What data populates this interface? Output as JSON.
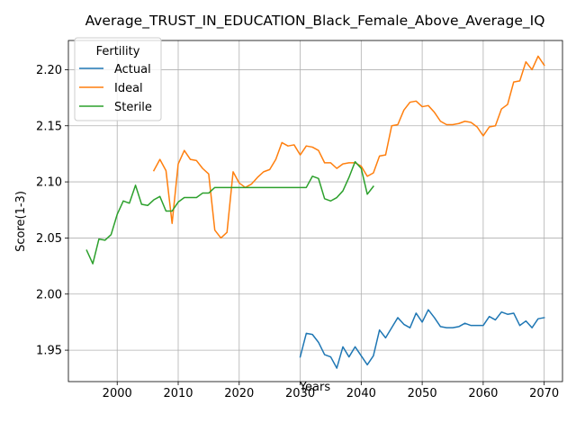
{
  "chart_data": {
    "type": "line",
    "title": "Average_TRUST_IN_EDUCATION_Black_Female_Above_Average_IQ",
    "xlabel": "Years",
    "ylabel": "Score(1-3)",
    "xlim": [
      1992,
      2073
    ],
    "ylim": [
      1.922,
      2.226
    ],
    "xticks": [
      2000,
      2010,
      2020,
      2030,
      2040,
      2050,
      2060,
      2070
    ],
    "yticks": [
      1.95,
      2.0,
      2.05,
      2.1,
      2.15,
      2.2
    ],
    "grid": true,
    "legend": {
      "title": "Fertility",
      "placement": "top-left"
    },
    "series": [
      {
        "name": "Actual",
        "color": "#1f77b4",
        "x": [
          2030,
          2031,
          2032,
          2033,
          2034,
          2035,
          2036,
          2037,
          2038,
          2039,
          2040,
          2041,
          2042,
          2043,
          2044,
          2045,
          2046,
          2047,
          2048,
          2049,
          2050,
          2051,
          2052,
          2053,
          2054,
          2055,
          2056,
          2057,
          2058,
          2059,
          2060,
          2061,
          2062,
          2063,
          2064,
          2065,
          2066,
          2067,
          2068,
          2069,
          2070
        ],
        "y": [
          1.944,
          1.965,
          1.964,
          1.957,
          1.946,
          1.944,
          1.934,
          1.953,
          1.944,
          1.953,
          1.945,
          1.937,
          1.945,
          1.968,
          1.961,
          1.97,
          1.979,
          1.973,
          1.97,
          1.983,
          1.975,
          1.986,
          1.979,
          1.971,
          1.97,
          1.97,
          1.971,
          1.974,
          1.972,
          1.972,
          1.972,
          1.98,
          1.977,
          1.984,
          1.982,
          1.983,
          1.972,
          1.976,
          1.97,
          1.978,
          1.979
        ]
      },
      {
        "name": "Ideal",
        "color": "#ff7f0e",
        "x": [
          2006,
          2007,
          2008,
          2009,
          2010,
          2011,
          2012,
          2013,
          2014,
          2015,
          2016,
          2017,
          2018,
          2019,
          2020,
          2021,
          2022,
          2023,
          2024,
          2025,
          2026,
          2027,
          2028,
          2029,
          2030,
          2031,
          2032,
          2033,
          2034,
          2035,
          2036,
          2037,
          2038,
          2039,
          2040,
          2041,
          2042,
          2043,
          2044,
          2045,
          2046,
          2047,
          2048,
          2049,
          2050,
          2051,
          2052,
          2053,
          2054,
          2055,
          2056,
          2057,
          2058,
          2059,
          2060,
          2061,
          2062,
          2063,
          2064,
          2065,
          2066,
          2067,
          2068,
          2069,
          2070
        ],
        "y": [
          2.11,
          2.12,
          2.11,
          2.063,
          2.116,
          2.128,
          2.12,
          2.119,
          2.112,
          2.107,
          2.057,
          2.05,
          2.055,
          2.109,
          2.099,
          2.095,
          2.098,
          2.104,
          2.109,
          2.111,
          2.12,
          2.135,
          2.132,
          2.133,
          2.124,
          2.132,
          2.131,
          2.128,
          2.117,
          2.117,
          2.112,
          2.116,
          2.117,
          2.117,
          2.114,
          2.105,
          2.108,
          2.123,
          2.124,
          2.15,
          2.151,
          2.164,
          2.171,
          2.172,
          2.167,
          2.168,
          2.162,
          2.154,
          2.151,
          2.151,
          2.152,
          2.154,
          2.153,
          2.149,
          2.141,
          2.149,
          2.15,
          2.165,
          2.169,
          2.189,
          2.19,
          2.207,
          2.2,
          2.212,
          2.204
        ]
      },
      {
        "name": "Sterile",
        "color": "#2ca02c",
        "x": [
          1995,
          1996,
          1997,
          1998,
          1999,
          2000,
          2001,
          2002,
          2003,
          2004,
          2005,
          2006,
          2007,
          2008,
          2009,
          2010,
          2011,
          2012,
          2013,
          2014,
          2015,
          2016,
          2017,
          2018,
          2019,
          2020,
          2021,
          2022,
          2023,
          2024,
          2025,
          2026,
          2027,
          2028,
          2029,
          2030,
          2031,
          2032,
          2033,
          2034,
          2035,
          2036,
          2037,
          2038,
          2039,
          2040,
          2041,
          2042
        ],
        "y": [
          2.039,
          2.027,
          2.049,
          2.048,
          2.053,
          2.071,
          2.083,
          2.081,
          2.097,
          2.08,
          2.079,
          2.084,
          2.087,
          2.074,
          2.074,
          2.082,
          2.086,
          2.086,
          2.086,
          2.09,
          2.09,
          2.095,
          2.095,
          2.095,
          2.095,
          2.095,
          2.095,
          2.095,
          2.095,
          2.095,
          2.095,
          2.095,
          2.095,
          2.095,
          2.095,
          2.095,
          2.095,
          2.105,
          2.103,
          2.085,
          2.083,
          2.086,
          2.092,
          2.104,
          2.118,
          2.112,
          2.089,
          2.096
        ]
      }
    ]
  }
}
